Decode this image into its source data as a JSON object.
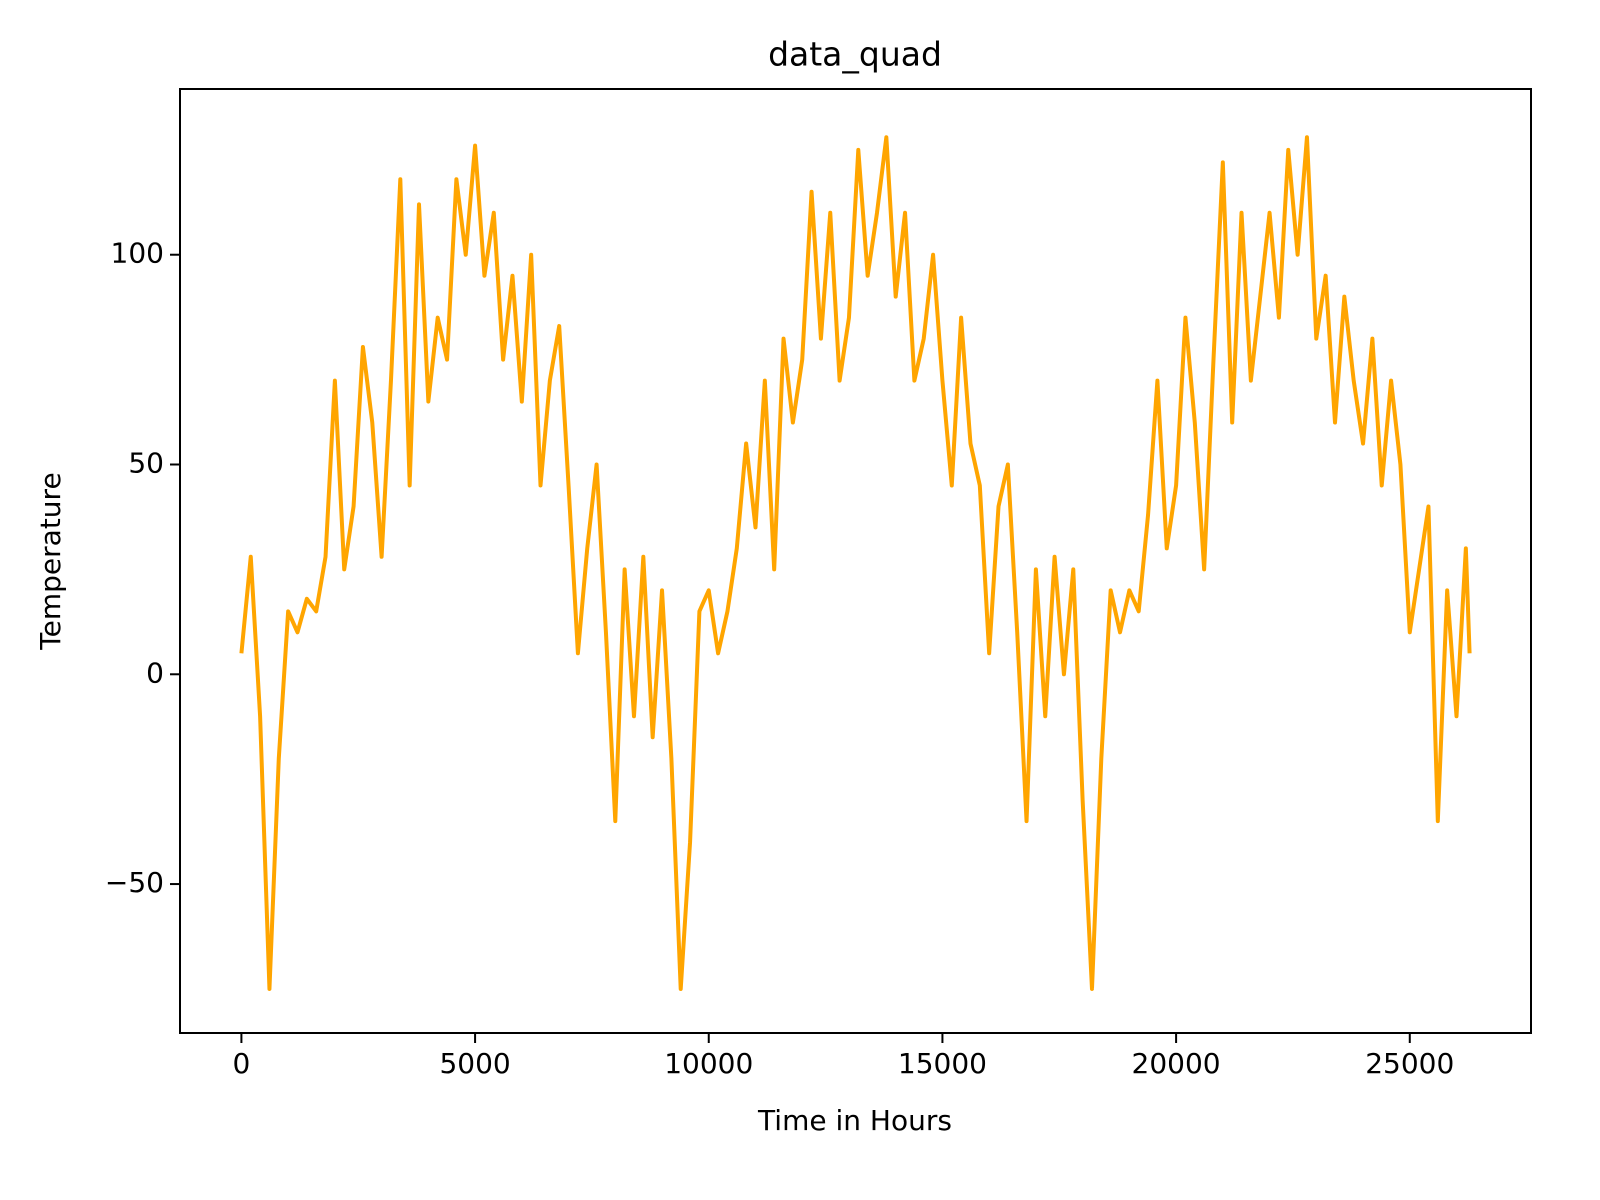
{
  "chart_data": {
    "type": "line",
    "title": "data_quad",
    "x_label": "Time in Hours",
    "y_label": "Temperature",
    "xlim": [
      -1314,
      27594
    ],
    "ylim": [
      -85.5,
      139.5
    ],
    "xticks": [
      0,
      5000,
      10000,
      15000,
      20000,
      25000
    ],
    "yticks": [
      {
        "value": -50,
        "label": "−50"
      },
      0,
      50,
      100
    ],
    "grid": false,
    "x": [
      0,
      200,
      400,
      600,
      800,
      1000,
      1200,
      1400,
      1600,
      1800,
      2000,
      2200,
      2400,
      2600,
      2800,
      3000,
      3200,
      3400,
      3600,
      3800,
      4000,
      4200,
      4400,
      4600,
      4800,
      5000,
      5200,
      5400,
      5600,
      5800,
      6000,
      6200,
      6400,
      6600,
      6800,
      7000,
      7200,
      7400,
      7600,
      7800,
      8000,
      8200,
      8400,
      8600,
      8800,
      9000,
      9200,
      9400,
      9600,
      9800,
      10000,
      10200,
      10400,
      10600,
      10800,
      11000,
      11200,
      11400,
      11600,
      11800,
      12000,
      12200,
      12400,
      12600,
      12800,
      13000,
      13200,
      13400,
      13600,
      13800,
      14000,
      14200,
      14400,
      14600,
      14800,
      15000,
      15200,
      15400,
      15600,
      15800,
      16000,
      16200,
      16400,
      16600,
      16800,
      17000,
      17200,
      17400,
      17600,
      17800,
      18000,
      18200,
      18400,
      18600,
      18800,
      19000,
      19200,
      19400,
      19600,
      19800,
      20000,
      20200,
      20400,
      20600,
      20800,
      21000,
      21200,
      21400,
      21600,
      21800,
      22000,
      22200,
      22400,
      22600,
      22800,
      23000,
      23200,
      23400,
      23600,
      23800,
      24000,
      24200,
      24400,
      24600,
      24800,
      25000,
      25200,
      25400,
      25600,
      25800,
      26000,
      26200,
      26280
    ],
    "series": [
      {
        "name": "data_quad",
        "color": "#ffa500",
        "values": [
          5,
          28,
          -10,
          -75,
          -20,
          15,
          10,
          18,
          15,
          28,
          70,
          25,
          40,
          78,
          60,
          28,
          70,
          118,
          45,
          112,
          65,
          85,
          75,
          118,
          100,
          126,
          95,
          110,
          75,
          95,
          65,
          100,
          45,
          70,
          83,
          45,
          5,
          30,
          50,
          10,
          -35,
          25,
          -10,
          28,
          -15,
          20,
          -20,
          -75,
          -40,
          15,
          20,
          5,
          15,
          30,
          55,
          35,
          70,
          25,
          80,
          60,
          75,
          115,
          80,
          110,
          70,
          85,
          125,
          95,
          110,
          128,
          90,
          110,
          70,
          80,
          100,
          70,
          45,
          85,
          55,
          45,
          5,
          40,
          50,
          10,
          -35,
          25,
          -10,
          28,
          0,
          25,
          -30,
          -75,
          -20,
          20,
          10,
          20,
          15,
          38,
          70,
          30,
          45,
          85,
          60,
          25,
          75,
          122,
          60,
          110,
          70,
          90,
          110,
          85,
          125,
          100,
          128,
          80,
          95,
          60,
          90,
          70,
          55,
          80,
          45,
          70,
          50,
          10,
          25,
          40,
          -35,
          20,
          -10,
          30,
          5
        ]
      }
    ]
  }
}
